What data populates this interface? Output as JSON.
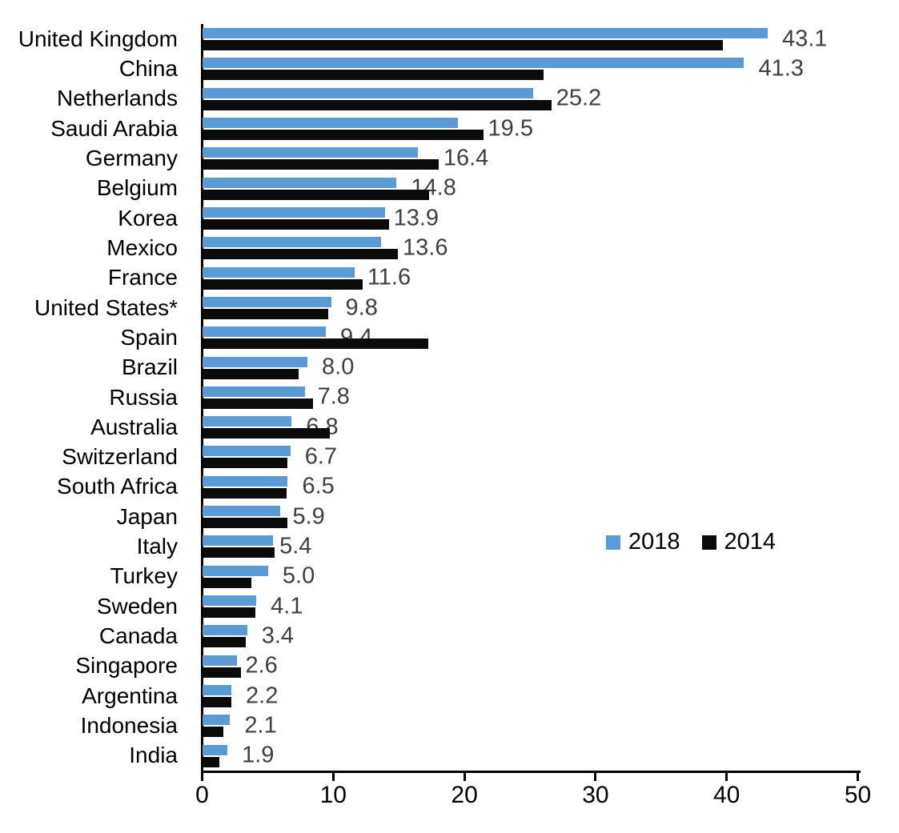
{
  "chart_data": {
    "type": "bar",
    "orientation": "horizontal",
    "categories": [
      "United Kingdom",
      "China",
      "Netherlands",
      "Saudi Arabia",
      "Germany",
      "Belgium",
      "Korea",
      "Mexico",
      "France",
      "United States*",
      "Spain",
      "Brazil",
      "Russia",
      "Australia",
      "Switzerland",
      "South Africa",
      "Japan",
      "Italy",
      "Turkey",
      "Sweden",
      "Canada",
      "Singapore",
      "Argentina",
      "Indonesia",
      "India"
    ],
    "series": [
      {
        "name": "2018",
        "color": "#5B9BD5",
        "values": [
          43.1,
          41.3,
          25.2,
          19.5,
          16.4,
          14.8,
          13.9,
          13.6,
          11.6,
          9.8,
          9.4,
          8.0,
          7.8,
          6.8,
          6.7,
          6.5,
          5.9,
          5.4,
          5.0,
          4.1,
          3.4,
          2.6,
          2.2,
          2.1,
          1.9
        ]
      },
      {
        "name": "2014",
        "color": "#0b0b0b",
        "values": [
          39.7,
          26.0,
          26.6,
          21.4,
          18.0,
          17.3,
          14.2,
          14.9,
          12.2,
          9.6,
          17.2,
          7.3,
          8.4,
          9.7,
          6.5,
          6.4,
          6.5,
          5.5,
          3.7,
          4.0,
          3.3,
          2.9,
          2.2,
          1.6,
          1.3
        ]
      }
    ],
    "data_labels": {
      "series": "2018",
      "color": "#3f3f3f",
      "values": [
        "43.1",
        "41.3",
        "25.2",
        "19.5",
        "16.4",
        "14.8",
        "13.9",
        "13.6",
        "11.6",
        "9.8",
        "9.4",
        "8.0",
        "7.8",
        "6.8",
        "6.7",
        "6.5",
        "5.9",
        "5.4",
        "5.0",
        "4.1",
        "3.4",
        "2.6",
        "2.2",
        "2.1",
        "1.9"
      ]
    },
    "x_axis": {
      "min": 0,
      "max": 50,
      "ticks": [
        "0",
        "10",
        "20",
        "30",
        "40",
        "50"
      ],
      "grid": false
    },
    "legend": {
      "position": "middle-right",
      "entries": [
        {
          "label": "2018",
          "color": "#5B9BD5"
        },
        {
          "label": "2014",
          "color": "#0b0b0b"
        }
      ]
    }
  }
}
